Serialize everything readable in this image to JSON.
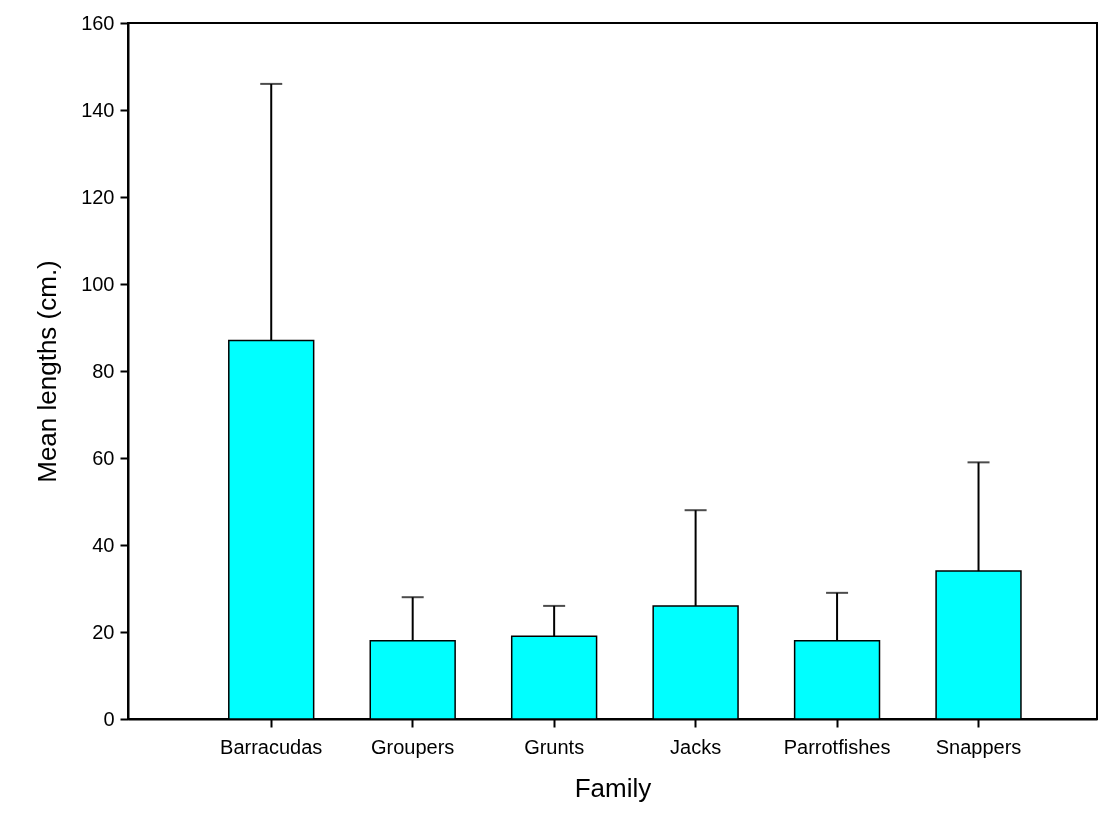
{
  "chart_data": {
    "type": "bar",
    "xlabel": "Family",
    "ylabel": "Mean lengths (cm.)",
    "categories": [
      "Barracudas",
      "Groupers",
      "Grunts",
      "Jacks",
      "Parrotfishes",
      "Snappers"
    ],
    "values": [
      87,
      18,
      19,
      26,
      18,
      34
    ],
    "errors": [
      [
        87,
        146
      ],
      [
        18,
        28
      ],
      [
        19,
        26
      ],
      [
        26,
        48
      ],
      [
        18,
        29
      ],
      [
        34,
        59
      ]
    ],
    "color": "#00ffff",
    "ylim": [
      0,
      160
    ],
    "yticks": [
      0,
      20,
      40,
      60,
      80,
      100,
      120,
      140,
      160
    ],
    "grid": false
  }
}
